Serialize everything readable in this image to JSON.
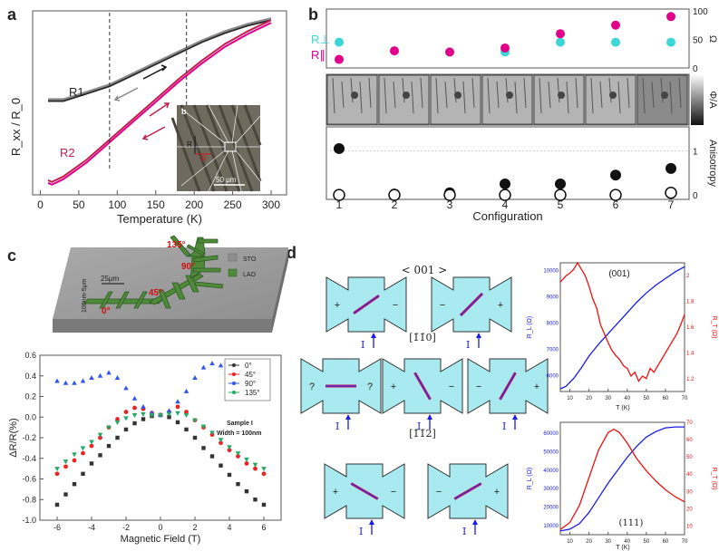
{
  "panel_labels": {
    "a": "a",
    "b": "b",
    "c": "c",
    "d": "d"
  },
  "colors": {
    "black_curve": "#2b2b2b",
    "grey_curve": "#8a8a8a",
    "magenta": "#e0008a",
    "red_curve": "#c02050",
    "cyan": "#3dd6d6",
    "lao_green": "#4e8a3a",
    "sto_grey": "#9e9e9e",
    "blue": "#1a1aee",
    "red": "#ee1111"
  },
  "chart_data": [
    {
      "id": "a",
      "type": "line",
      "xlabel": "Temperature (K)",
      "ylabel": "R_xx / R_0",
      "xlim": [
        -10,
        320
      ],
      "xticks": [
        0,
        50,
        100,
        150,
        200,
        250,
        300
      ],
      "series": [
        {
          "name": "R1",
          "x": [
            10,
            30,
            60,
            90,
            120,
            150,
            180,
            210,
            240,
            270,
            300
          ],
          "y": [
            0.56,
            0.56,
            0.6,
            0.64,
            0.7,
            0.76,
            0.82,
            0.88,
            0.93,
            0.97,
            1.0
          ]
        },
        {
          "name": "R2",
          "x": [
            10,
            15,
            30,
            60,
            90,
            120,
            150,
            180,
            210,
            240,
            270,
            300
          ],
          "y": [
            0.13,
            0.12,
            0.15,
            0.24,
            0.35,
            0.46,
            0.57,
            0.68,
            0.78,
            0.87,
            0.94,
            1.0
          ]
        }
      ],
      "labels": {
        "r1": "R1",
        "r2": "R2"
      },
      "dashed_at": [
        90,
        190
      ],
      "inset": {
        "label": "b",
        "scale": "50 μm",
        "r_perp": "R",
        "r_par": "R"
      }
    },
    {
      "id": "b",
      "type": "scatter",
      "xlabel": "Configuration",
      "categories": [
        "1",
        "2",
        "3",
        "4",
        "5",
        "6",
        "7"
      ],
      "top": {
        "ylabel": "Ω",
        "yticks": [
          0,
          50,
          100
        ],
        "ylim": [
          0,
          100
        ],
        "legend": [
          "R⊥",
          "R∥"
        ],
        "r_perp": [
          45,
          null,
          null,
          28,
          45,
          45,
          45
        ],
        "r_par": [
          15,
          30,
          28,
          35,
          60,
          75,
          90
        ]
      },
      "middle": {
        "ylabel": "Φ/A"
      },
      "bottom": {
        "ylabel": "Anisotropy",
        "yticks": [
          0,
          1
        ],
        "ylim": [
          -0.1,
          1.5
        ],
        "filled": [
          1.05,
          0.02,
          0.05,
          0.25,
          0.25,
          0.45,
          0.6
        ],
        "open": [
          0,
          0,
          0,
          0,
          0,
          0,
          0.05
        ]
      }
    },
    {
      "id": "c",
      "type": "scatter",
      "xlabel": "Magnetic Field (T)",
      "ylabel": "ΔR/R(%)",
      "xlim": [
        -7,
        7
      ],
      "ylim": [
        -1.0,
        0.6
      ],
      "xticks": [
        -6,
        -4,
        -2,
        0,
        2,
        4,
        6
      ],
      "yticks": [
        -1.0,
        -0.8,
        -0.6,
        -0.4,
        -0.2,
        0.0,
        0.2,
        0.4,
        0.6
      ],
      "series": [
        {
          "name": "0°",
          "color": "#333333",
          "x": [
            -6,
            -5.5,
            -5,
            -4.5,
            -4,
            -3.5,
            -3,
            -2.5,
            -2,
            -1.5,
            -1,
            -0.5,
            0,
            0.5,
            1,
            1.5,
            2,
            2.5,
            3,
            3.5,
            4,
            4.5,
            5,
            5.5,
            6
          ],
          "y": [
            -0.85,
            -0.75,
            -0.65,
            -0.55,
            -0.45,
            -0.37,
            -0.28,
            -0.2,
            -0.12,
            -0.06,
            -0.02,
            0.01,
            0.02,
            0.0,
            -0.05,
            -0.12,
            -0.2,
            -0.3,
            -0.38,
            -0.47,
            -0.56,
            -0.65,
            -0.72,
            -0.8,
            -0.85
          ]
        },
        {
          "name": "45°",
          "color": "#ee2222",
          "x": [
            -6,
            -5.5,
            -5,
            -4.5,
            -4,
            -3.5,
            -3,
            -2.5,
            -2,
            -1.5,
            -1,
            -0.5,
            0,
            0.5,
            1,
            1.5,
            2,
            2.5,
            3,
            3.5,
            4,
            4.5,
            5,
            5.5,
            6
          ],
          "y": [
            -0.55,
            -0.48,
            -0.42,
            -0.35,
            -0.28,
            -0.2,
            -0.1,
            -0.02,
            0.05,
            0.09,
            0.08,
            0.04,
            0.02,
            0.05,
            0.1,
            0.05,
            -0.03,
            -0.1,
            -0.17,
            -0.25,
            -0.32,
            -0.38,
            -0.45,
            -0.5,
            -0.55
          ]
        },
        {
          "name": "90°",
          "color": "#3355ee",
          "x": [
            -6,
            -5.5,
            -5,
            -4.5,
            -4,
            -3.5,
            -3,
            -2.5,
            -2,
            -1.5,
            -1,
            -0.5,
            0,
            0.5,
            1,
            1.5,
            2,
            2.5,
            3,
            3.5,
            4,
            4.5,
            5,
            5.5,
            6
          ],
          "y": [
            0.35,
            0.33,
            0.33,
            0.35,
            0.38,
            0.4,
            0.43,
            0.38,
            0.28,
            0.18,
            0.1,
            0.04,
            0.02,
            0.06,
            0.15,
            0.25,
            0.38,
            0.48,
            0.52,
            0.5,
            0.48,
            0.46,
            0.45,
            0.44,
            0.43
          ]
        },
        {
          "name": "135°",
          "color": "#22aa66",
          "x": [
            -6,
            -5.5,
            -5,
            -4.5,
            -4,
            -3.5,
            -3,
            -2.5,
            -2,
            -1.5,
            -1,
            -0.5,
            0,
            0.5,
            1,
            1.5,
            2,
            2.5,
            3,
            3.5,
            4,
            4.5,
            5,
            5.5,
            6
          ],
          "y": [
            -0.5,
            -0.43,
            -0.36,
            -0.3,
            -0.24,
            -0.17,
            -0.1,
            -0.05,
            -0.01,
            0.02,
            0.03,
            0.02,
            0.02,
            0.03,
            0.04,
            0.02,
            -0.03,
            -0.09,
            -0.15,
            -0.22,
            -0.29,
            -0.35,
            -0.41,
            -0.46,
            -0.5
          ]
        }
      ],
      "annotation": [
        "Sample I",
        "Width = 100nm"
      ]
    },
    {
      "id": "d1",
      "type": "line",
      "xlabel": "T (K)",
      "ylabel_left": "R_L (Ω)",
      "ylabel_right": "R_T (Ω)",
      "label": "(001)",
      "xticks": [
        10,
        20,
        30,
        40,
        50,
        60,
        70
      ],
      "xlim": [
        5,
        70
      ],
      "left": {
        "yticks": [
          6000,
          7000,
          8000,
          9000,
          10000
        ],
        "ylim": [
          5400,
          10300
        ]
      },
      "right": {
        "yticks": [
          1.2,
          1.4,
          1.6,
          1.8,
          2.0
        ],
        "ylim": [
          1.1,
          2.1
        ]
      },
      "blue": {
        "x": [
          5,
          8,
          12,
          16,
          20,
          25,
          30,
          35,
          40,
          45,
          50,
          55,
          60,
          65,
          70
        ],
        "y": [
          5500,
          5600,
          5900,
          6300,
          6750,
          7200,
          7600,
          8000,
          8400,
          8800,
          9150,
          9450,
          9700,
          9950,
          10150
        ]
      },
      "red": {
        "x": [
          5,
          8,
          10,
          12,
          14,
          16,
          18,
          20,
          22,
          24,
          26,
          28,
          30,
          32,
          34,
          36,
          38,
          40,
          42,
          44,
          46,
          48,
          50,
          52,
          54,
          56,
          58,
          60,
          62,
          64,
          66,
          68,
          70
        ],
        "y": [
          1.95,
          2.0,
          2.02,
          2.05,
          2.1,
          2.05,
          2.0,
          1.92,
          1.82,
          1.75,
          1.62,
          1.55,
          1.48,
          1.42,
          1.38,
          1.35,
          1.3,
          1.28,
          1.22,
          1.25,
          1.18,
          1.22,
          1.2,
          1.28,
          1.25,
          1.3,
          1.35,
          1.4,
          1.45,
          1.5,
          1.55,
          1.62,
          1.7
        ]
      }
    },
    {
      "id": "d2",
      "type": "line",
      "xlabel": "T (K)",
      "ylabel_left": "R_L (Ω)",
      "ylabel_right": "R_T (Ω)",
      "label": "(111)",
      "xticks": [
        10,
        20,
        30,
        40,
        50,
        60,
        70
      ],
      "xlim": [
        5,
        70
      ],
      "left": {
        "yticks": [
          10000,
          20000,
          30000,
          40000,
          50000,
          60000
        ],
        "ylim": [
          5000,
          66000
        ]
      },
      "right": {
        "yticks": [
          10,
          20,
          30,
          40,
          50,
          60,
          70
        ],
        "ylim": [
          5,
          70
        ]
      },
      "blue": {
        "x": [
          5,
          10,
          15,
          20,
          25,
          30,
          35,
          40,
          45,
          50,
          55,
          60,
          65,
          70
        ],
        "y": [
          7000,
          8000,
          11000,
          17000,
          25000,
          33000,
          40000,
          47000,
          53000,
          58000,
          61000,
          63000,
          63500,
          63500
        ]
      },
      "red": {
        "x": [
          5,
          10,
          15,
          20,
          25,
          30,
          33,
          36,
          40,
          45,
          50,
          55,
          60,
          65,
          70
        ],
        "y": [
          8,
          12,
          22,
          38,
          54,
          64,
          66,
          64,
          58,
          49,
          42,
          36,
          31,
          27,
          24
        ]
      }
    }
  ],
  "d_diagram": {
    "dir1": "< 001 >",
    "dir2": "[1̄1̄0]",
    "dir3": "[1̄1̄2]",
    "current": "I",
    "row1": [
      {
        "l": "+",
        "r": "−"
      },
      {
        "l": "−",
        "r": "+"
      }
    ],
    "row2": [
      {
        "l": "?",
        "r": "?"
      },
      {
        "l": "+",
        "r": "−"
      },
      {
        "l": "−",
        "r": "+"
      }
    ],
    "row3": [
      {
        "l": "+",
        "r": "−"
      },
      {
        "l": "−",
        "r": "+"
      }
    ]
  },
  "c_diagram": {
    "legend_sto": "STO",
    "legend_lao": "LAO",
    "angle0": "0°",
    "angle45": "45°",
    "angle90": "90°",
    "angle135": "135°",
    "w25": "25μm",
    "w100": "100nm-5μm"
  }
}
